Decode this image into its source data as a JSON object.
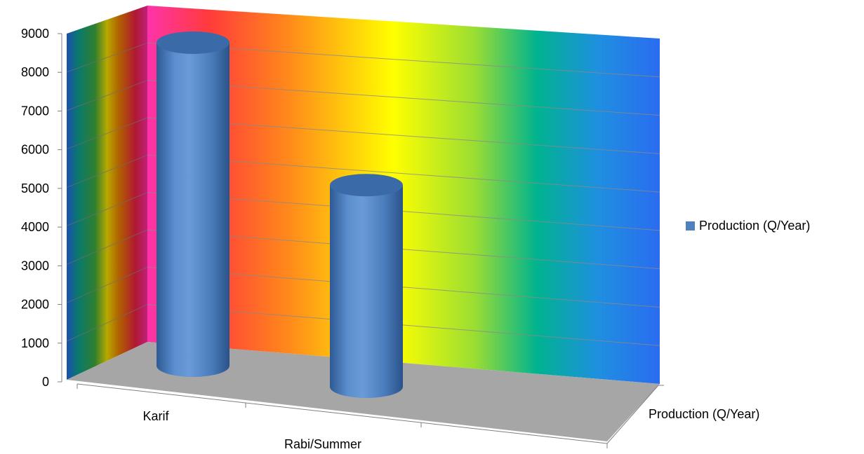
{
  "chart_data": {
    "type": "bar",
    "style": "3d-cylinder",
    "categories": [
      "Karif",
      "Rabi/Summer"
    ],
    "series": [
      {
        "name": "Production (Q/Year)",
        "values": [
          8300,
          4850
        ],
        "color": "#4f81bd"
      }
    ],
    "depth_axis_label": "Production (Q/Year)",
    "ylim": [
      0,
      9000
    ],
    "yticks": [
      "0",
      "1000",
      "2000",
      "3000",
      "4000",
      "5000",
      "6000",
      "7000",
      "8000",
      "9000"
    ],
    "grid": true,
    "legend": "right",
    "floor_color": "#a6a6a6",
    "wall_gradient": [
      "#ff33aa",
      "#ff3333",
      "#ff8c1a",
      "#ffff00",
      "#99dd33",
      "#00b38f",
      "#1f8fe0",
      "#2a6cf0"
    ]
  }
}
